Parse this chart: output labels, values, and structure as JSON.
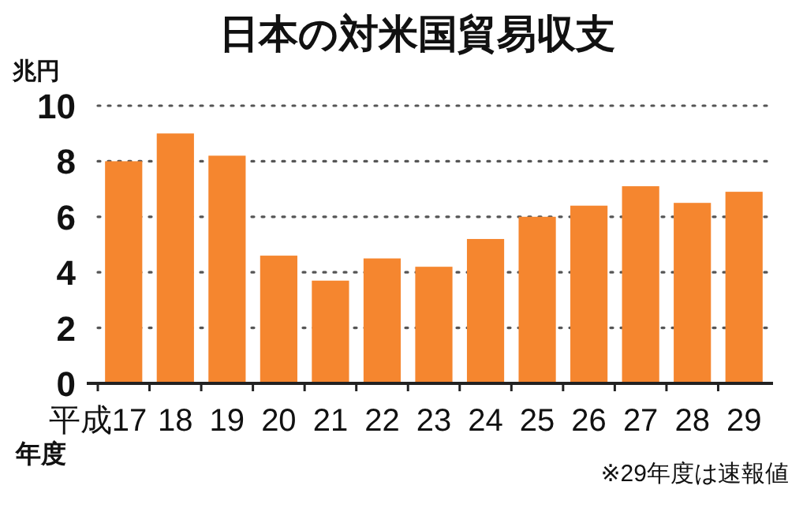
{
  "chart_data": {
    "type": "bar",
    "title": "日本の対米国貿易収支",
    "ylabel": "兆円",
    "xlabel": "年度",
    "categories": [
      "平成17",
      "18",
      "19",
      "20",
      "21",
      "22",
      "23",
      "24",
      "25",
      "26",
      "27",
      "28",
      "29"
    ],
    "values": [
      8.0,
      9.0,
      8.2,
      4.6,
      3.7,
      4.5,
      4.2,
      5.2,
      6.0,
      6.4,
      7.1,
      6.5,
      6.9
    ],
    "color": "#f5862f",
    "ylim": [
      0,
      10
    ],
    "yticks": [
      0,
      2,
      4,
      6,
      8,
      10
    ],
    "grid": "y",
    "line_style": "dotted",
    "annotations": [
      "※29年度は速報値"
    ]
  }
}
